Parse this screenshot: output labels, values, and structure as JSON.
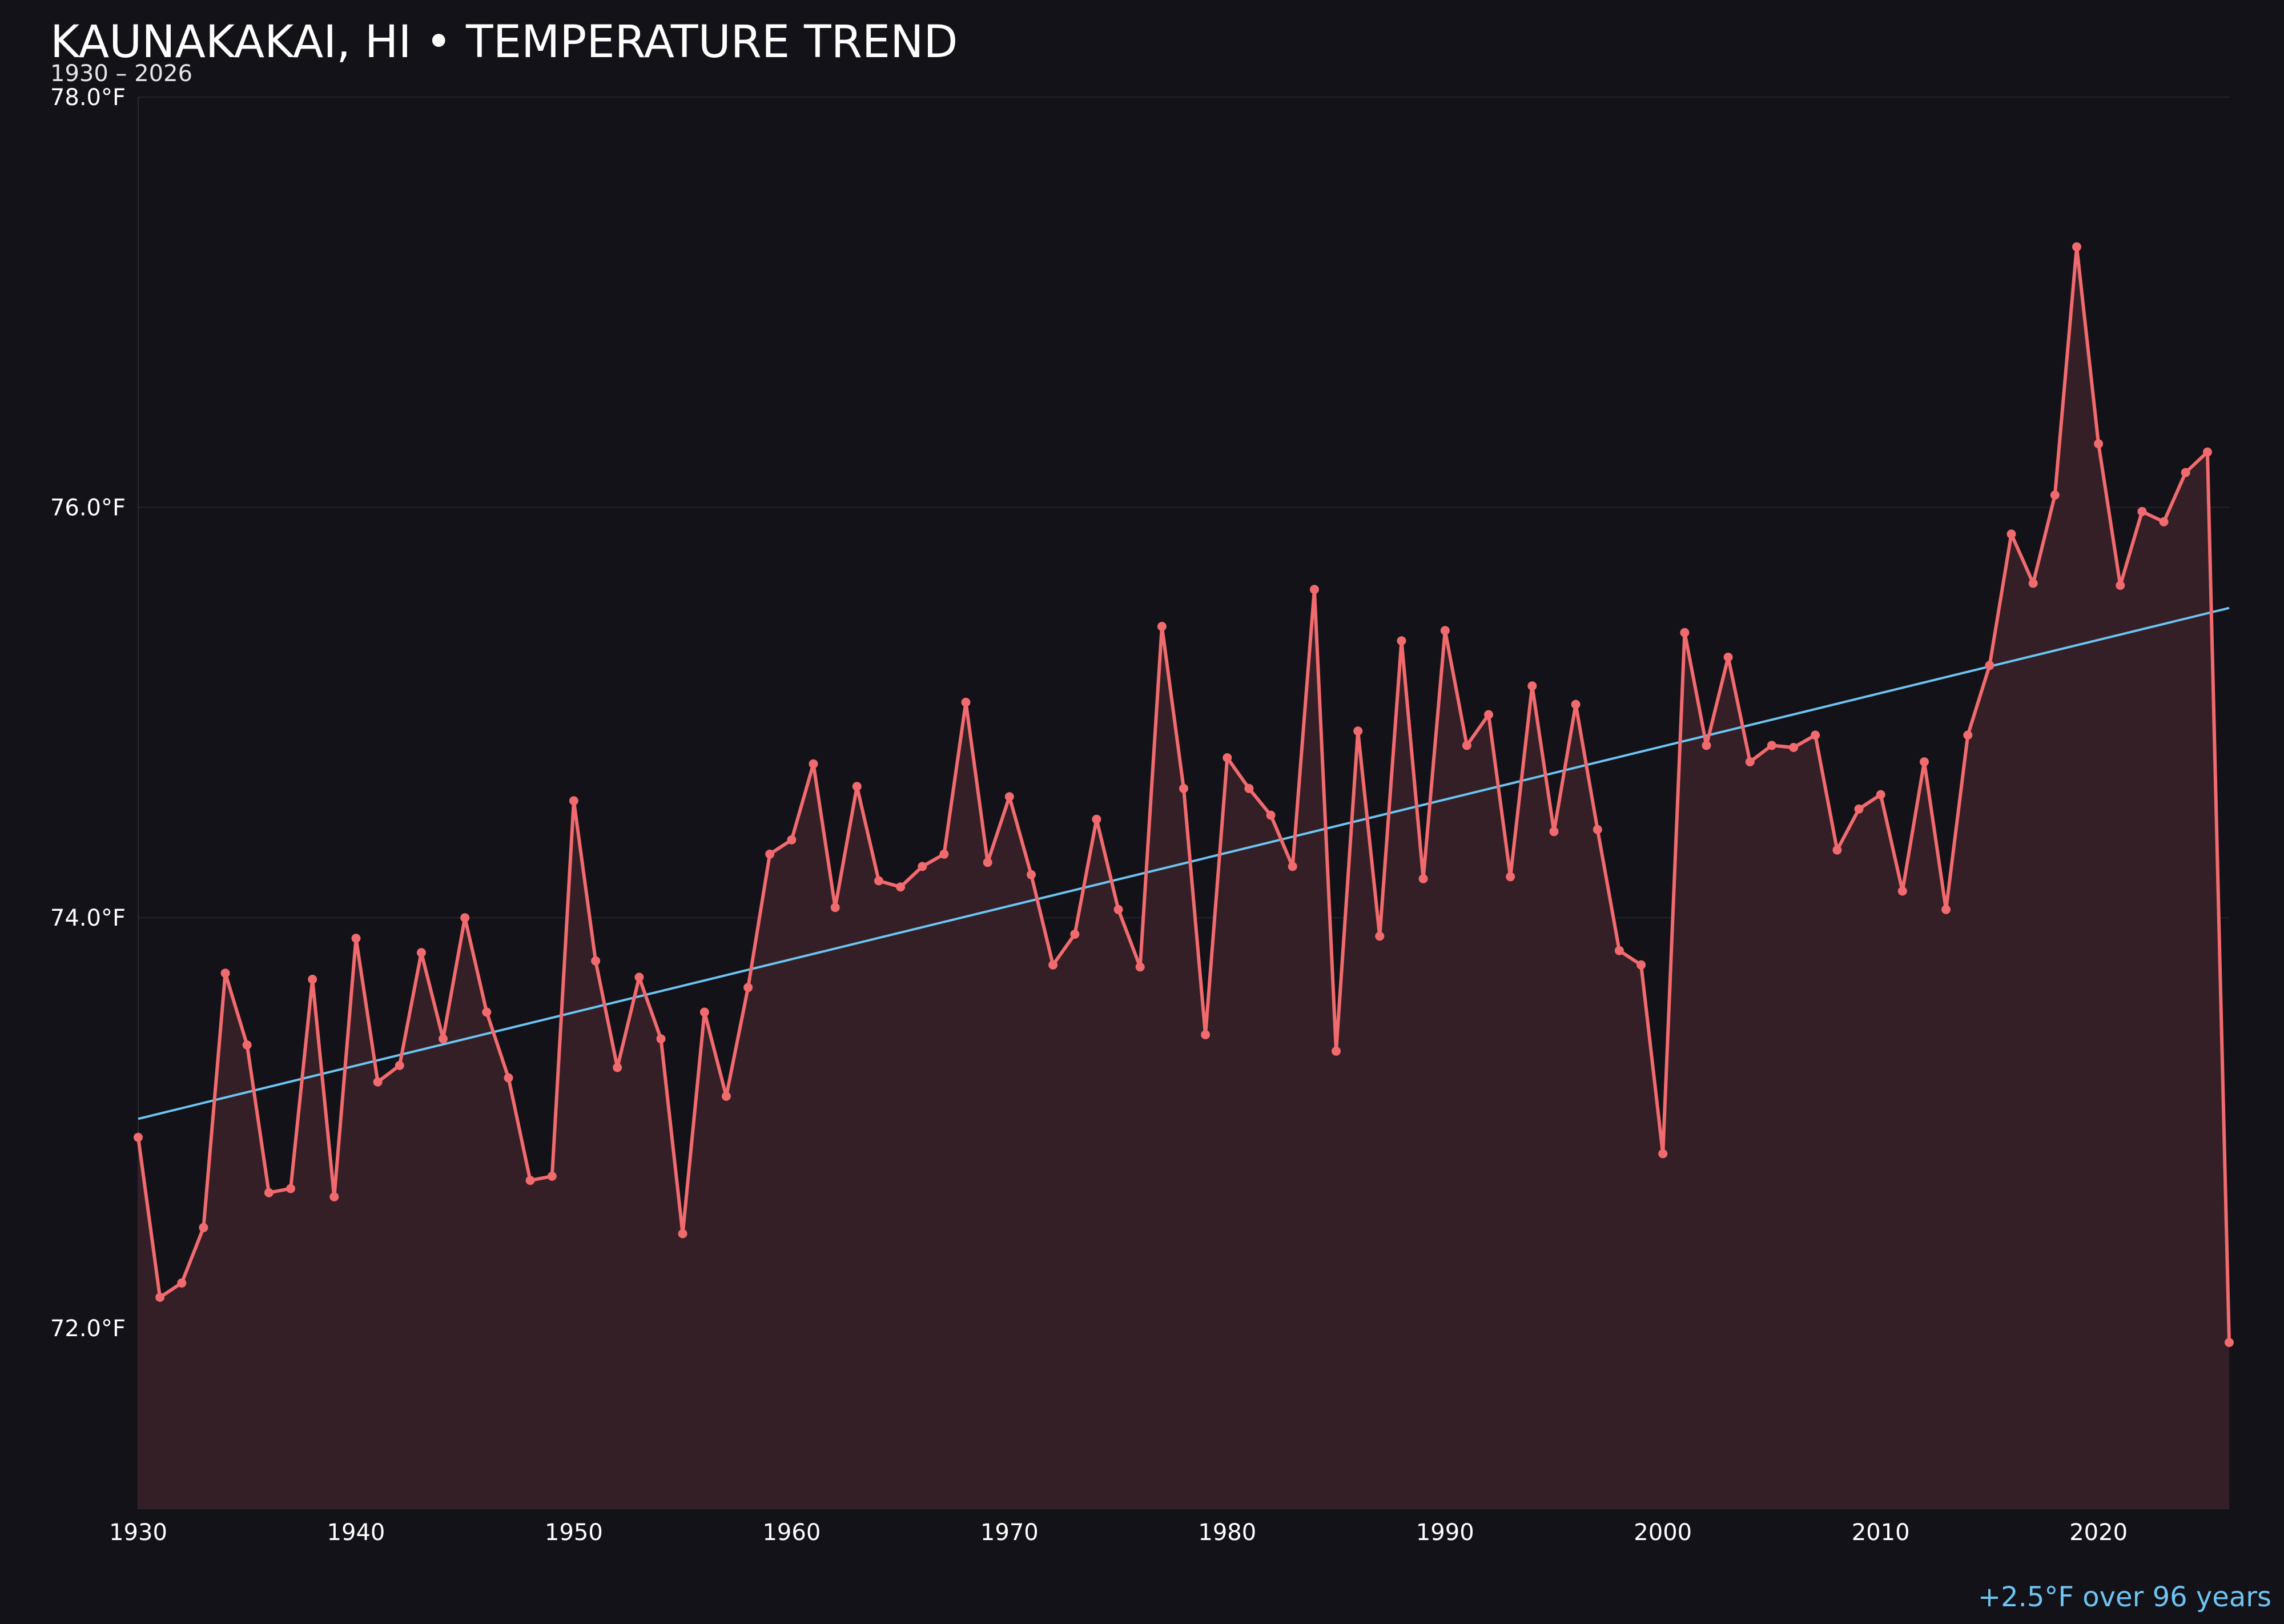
{
  "chart_data": {
    "type": "line",
    "title": "KAUNAKAKAI, HI • TEMPERATURE TREND",
    "subtitle": "1930 – 2026",
    "xlabel": "",
    "ylabel": "",
    "annotation": "+2.5°F over 96 years",
    "xlim": [
      1930,
      2026
    ],
    "ylim": [
      71.12,
      78.0
    ],
    "grid": true,
    "x_ticks": [
      {
        "value": 1930,
        "label": "1930"
      },
      {
        "value": 1940,
        "label": "1940"
      },
      {
        "value": 1950,
        "label": "1950"
      },
      {
        "value": 1960,
        "label": "1960"
      },
      {
        "value": 1970,
        "label": "1970"
      },
      {
        "value": 1980,
        "label": "1980"
      },
      {
        "value": 1990,
        "label": "1990"
      },
      {
        "value": 2000,
        "label": "2000"
      },
      {
        "value": 2010,
        "label": "2010"
      },
      {
        "value": 2020,
        "label": "2020"
      }
    ],
    "y_ticks": [
      {
        "value": 72,
        "label": "72.0°F"
      },
      {
        "value": 74,
        "label": "74.0°F"
      },
      {
        "value": 76,
        "label": "76.0°F"
      },
      {
        "value": 78,
        "label": "78.0°F"
      }
    ],
    "colors": {
      "series": "#f06a6e",
      "area": "#341f26",
      "trend": "#6cc5f2",
      "background": "#131218"
    },
    "trend": {
      "x": [
        1930,
        2026
      ],
      "y": [
        73.02,
        75.51
      ]
    },
    "series": [
      {
        "x": [
          1930,
          1931,
          1932,
          1933,
          1934,
          1935,
          1936,
          1937,
          1938,
          1939,
          1940,
          1941,
          1942,
          1943,
          1944,
          1945,
          1946,
          1947,
          1948,
          1949,
          1950,
          1951,
          1952,
          1953,
          1954,
          1955,
          1956,
          1957,
          1958,
          1959,
          1960,
          1961,
          1962,
          1963,
          1964,
          1965,
          1966,
          1967,
          1968,
          1969,
          1970,
          1971,
          1972,
          1973,
          1974,
          1975,
          1976,
          1977,
          1978,
          1979,
          1980,
          1981,
          1982,
          1983,
          1984,
          1985,
          1986,
          1987,
          1988,
          1989,
          1990,
          1991,
          1992,
          1993,
          1994,
          1995,
          1996,
          1997,
          1998,
          1999,
          2000,
          2001,
          2002,
          2003,
          2004,
          2005,
          2006,
          2007,
          2008,
          2009,
          2010,
          2011,
          2012,
          2013,
          2014,
          2015,
          2016,
          2017,
          2018,
          2019,
          2020,
          2021,
          2022,
          2023,
          2024,
          2025,
          2026
        ],
        "values": [
          72.93,
          72.15,
          72.22,
          72.49,
          73.73,
          73.38,
          72.66,
          72.68,
          73.7,
          72.64,
          73.9,
          73.2,
          73.28,
          73.83,
          73.41,
          74.0,
          73.54,
          73.22,
          72.72,
          72.74,
          74.57,
          73.79,
          73.27,
          73.71,
          73.41,
          72.46,
          73.54,
          73.13,
          73.66,
          74.31,
          74.38,
          74.75,
          74.05,
          74.64,
          74.18,
          74.15,
          74.25,
          74.31,
          75.05,
          74.27,
          74.59,
          74.21,
          73.77,
          73.92,
          74.48,
          74.04,
          73.76,
          75.42,
          74.63,
          73.43,
          74.78,
          74.63,
          74.5,
          74.25,
          75.6,
          73.35,
          74.91,
          73.91,
          75.35,
          74.19,
          75.4,
          74.84,
          74.99,
          74.2,
          75.13,
          74.42,
          75.04,
          74.43,
          73.84,
          73.77,
          72.85,
          75.39,
          74.84,
          75.27,
          74.76,
          74.84,
          74.83,
          74.89,
          74.33,
          74.53,
          74.6,
          74.13,
          74.76,
          74.04,
          74.89,
          75.23,
          75.87,
          75.63,
          76.06,
          77.27,
          76.31,
          75.62,
          75.98,
          75.93,
          76.17,
          76.27,
          71.93
        ]
      }
    ]
  }
}
